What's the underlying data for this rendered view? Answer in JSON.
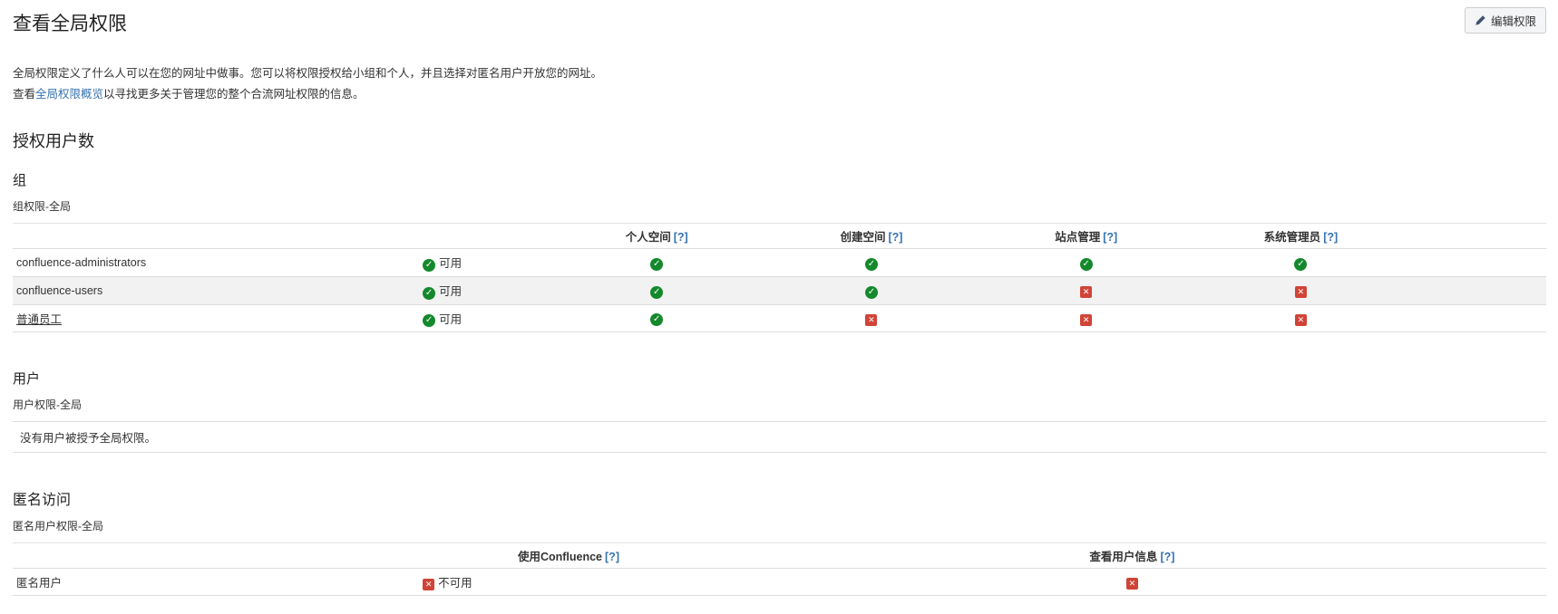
{
  "header": {
    "title": "查看全局权限",
    "edit_button_label": "编辑权限"
  },
  "intro": {
    "line1": "全局权限定义了什么人可以在您的网址中做事。您可以将权限授权给小组和个人，并且选择对匿名用户开放您的网址。",
    "line2_prefix": "查看",
    "line2_link": "全局权限概览",
    "line2_suffix": "以寻找更多关于管理您的整个合流网址权限的信息。"
  },
  "help_marker": "[?]",
  "licensed_users": {
    "heading": "授权用户数"
  },
  "groups": {
    "heading": "组",
    "subheading": "组权限-全局",
    "columns": [
      "个人空间",
      "创建空间",
      "站点管理",
      "系统管理员"
    ],
    "rows": [
      {
        "name": "confluence-administrators",
        "is_link": false,
        "status_enabled": true,
        "status_label": "可用",
        "permissions": [
          true,
          true,
          true,
          true
        ]
      },
      {
        "name": "confluence-users",
        "is_link": false,
        "status_enabled": true,
        "status_label": "可用",
        "permissions": [
          true,
          true,
          false,
          false
        ]
      },
      {
        "name": "普通员工",
        "is_link": true,
        "status_enabled": true,
        "status_label": "可用",
        "permissions": [
          true,
          false,
          false,
          false
        ]
      }
    ]
  },
  "users": {
    "heading": "用户",
    "subheading": "用户权限-全局",
    "empty_message": "没有用户被授予全局权限。"
  },
  "anonymous": {
    "heading": "匿名访问",
    "subheading": "匿名用户权限-全局",
    "columns": [
      "使用Confluence",
      "查看用户信息"
    ],
    "rows": [
      {
        "name": "匿名用户",
        "status_enabled": false,
        "status_label": "不可用",
        "permissions": [
          false
        ]
      }
    ]
  },
  "icons": {
    "enabled": "check-icon",
    "disabled": "cross-icon",
    "check_glyph": "✓",
    "cross_glyph": "✕"
  },
  "colors": {
    "link_blue": "#3572b0",
    "check_green": "#14892c",
    "cross_red": "#d04437",
    "row_alt_gray": "#f2f2f2",
    "border_gray": "#dddddd",
    "button_bg": "#f4f5f7"
  }
}
